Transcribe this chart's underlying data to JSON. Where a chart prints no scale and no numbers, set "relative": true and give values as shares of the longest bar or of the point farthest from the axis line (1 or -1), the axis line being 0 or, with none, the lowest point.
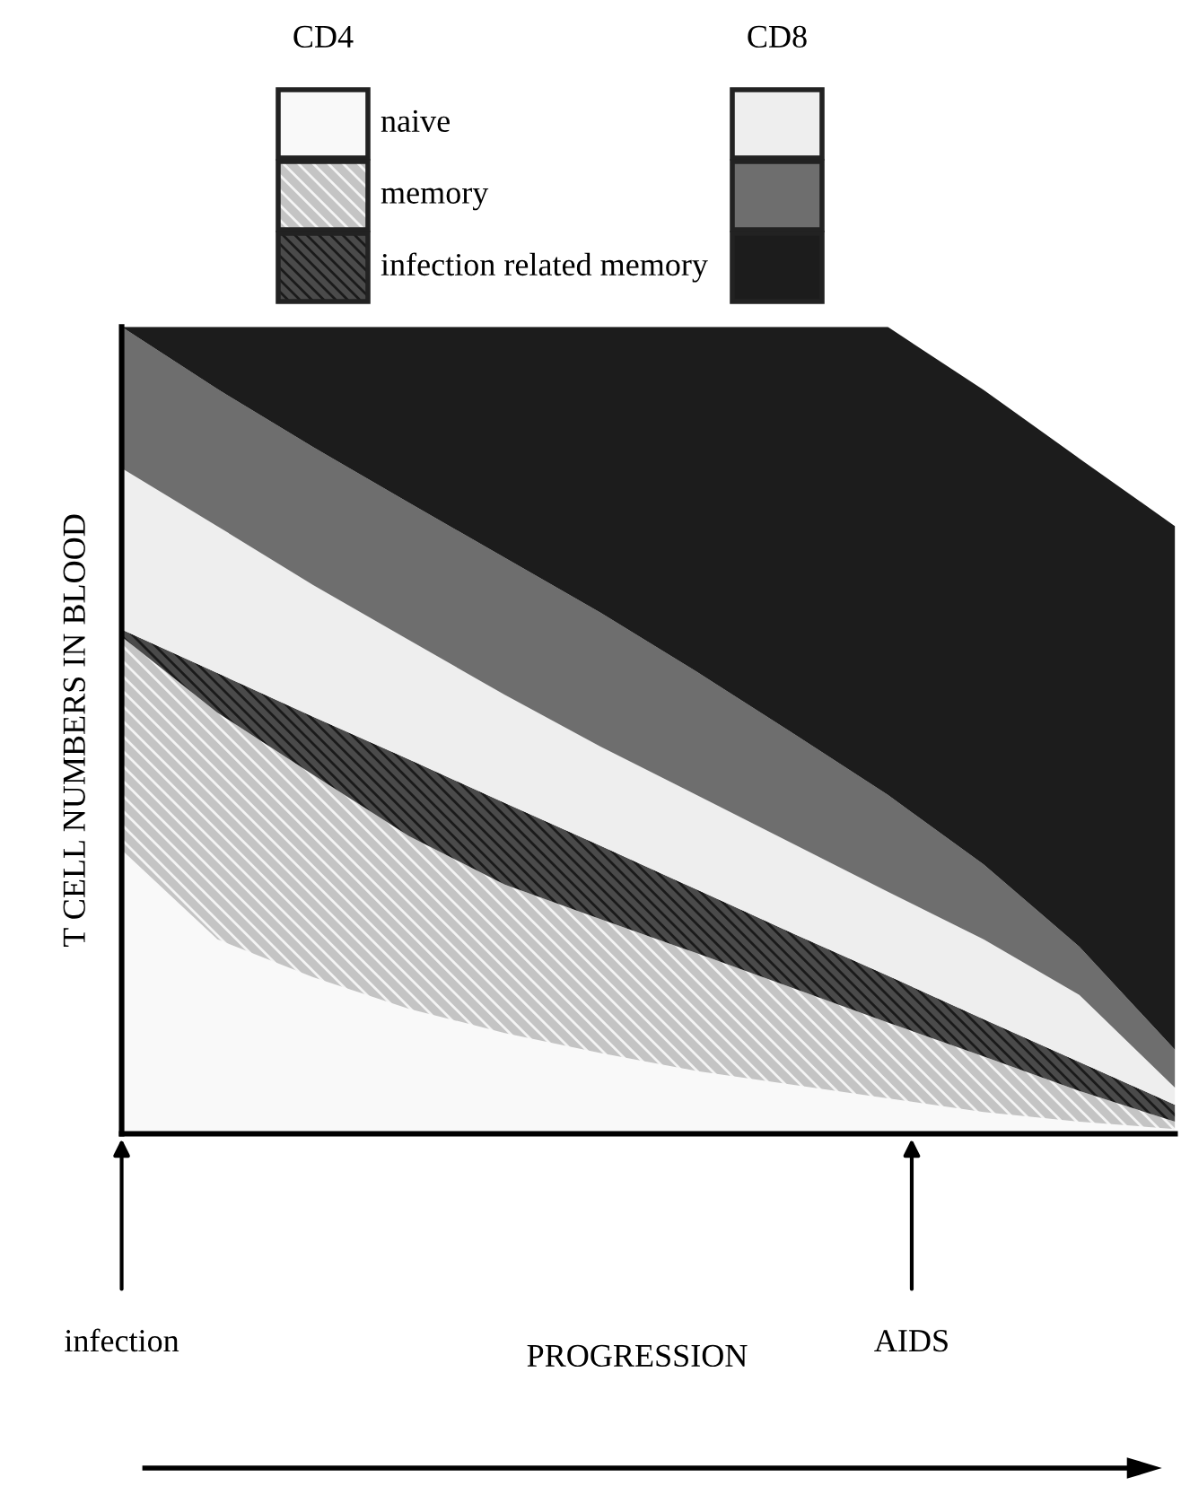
{
  "chart_data": {
    "type": "area",
    "stacked": true,
    "relative": true,
    "ylabel": "T CELL NUMBERS IN BLOOD",
    "categories": [
      null,
      null,
      null,
      null,
      null,
      null,
      null,
      null,
      null,
      null,
      null,
      null
    ],
    "annotations": [
      "CD4",
      "CD8",
      "infection",
      "AIDS",
      "PROGRESSION"
    ],
    "series": [
      {
        "name": "naive",
        "color": "#f9f9f9",
        "values": [
          0.352,
          0.241,
          0.194,
          0.155,
          0.125,
          0.1,
          0.078,
          0.061,
          0.044,
          0.027,
          0.015,
          0.006
        ]
      },
      {
        "name": "memory",
        "color": "#c4c4c4",
        "values": [
          0.264,
          0.281,
          0.251,
          0.214,
          0.184,
          0.166,
          0.146,
          0.12,
          0.094,
          0.069,
          0.038,
          0.009
        ]
      },
      {
        "name": "infection related memory",
        "color": "#4a4a4a",
        "values": [
          0.009,
          0.049,
          0.072,
          0.095,
          0.101,
          0.091,
          0.079,
          0.068,
          0.058,
          0.046,
          0.036,
          0.021
        ]
      },
      {
        "color": "#eeeeee",
        "values": [
          0.2,
          0.182,
          0.163,
          0.148,
          0.134,
          0.123,
          0.117,
          0.111,
          0.104,
          0.099,
          0.083,
          0.021
        ]
      },
      {
        "color": "#6e6e6e",
        "values": [
          0.175,
          0.17,
          0.171,
          0.17,
          0.17,
          0.166,
          0.153,
          0.137,
          0.12,
          0.093,
          0.06,
          0.047
        ]
      },
      {
        "color": "#1c1c1c",
        "values": [
          0.0,
          0.077,
          0.149,
          0.218,
          0.286,
          0.354,
          0.427,
          0.503,
          0.58,
          0.588,
          0.605,
          0.649
        ]
      }
    ],
    "legend": "top"
  }
}
